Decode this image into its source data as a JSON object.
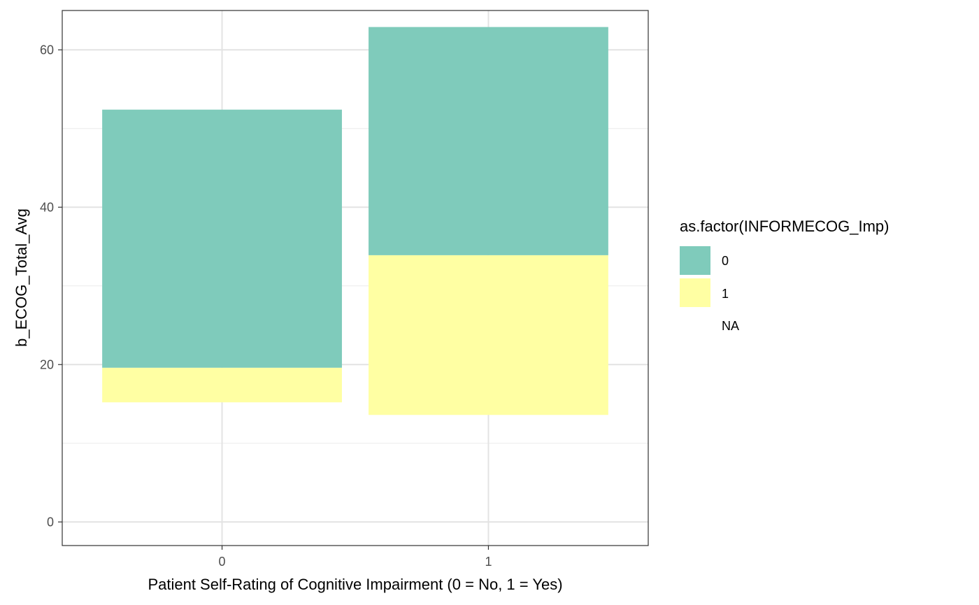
{
  "chart_data": {
    "type": "bar",
    "stacked": true,
    "xlabel": "Patient Self-Rating of Cognitive Impairment (0 = No, 1 = Yes)",
    "ylabel": "b_ECOG_Total_Avg",
    "categories": [
      "0",
      "1"
    ],
    "ylim": [
      -3,
      65
    ],
    "yticks": [
      0,
      20,
      40,
      60
    ],
    "y_minor_ticks": [
      10,
      30,
      50
    ],
    "grid": true,
    "series": [
      {
        "name": "1",
        "color": "#FFFFA3",
        "ranges": [
          [
            15.2,
            19.6
          ],
          [
            13.6,
            33.9
          ]
        ]
      },
      {
        "name": "0",
        "color": "#7FCBBB",
        "ranges": [
          [
            19.6,
            52.4
          ],
          [
            33.9,
            62.9
          ]
        ]
      }
    ],
    "legend": {
      "title": "as.factor(INFORMECOG_Imp)",
      "position": "right",
      "entries": [
        {
          "label": "0",
          "color": "#7FCBBB"
        },
        {
          "label": "1",
          "color": "#FFFFA3"
        },
        {
          "label": "NA",
          "color": ""
        }
      ]
    }
  }
}
